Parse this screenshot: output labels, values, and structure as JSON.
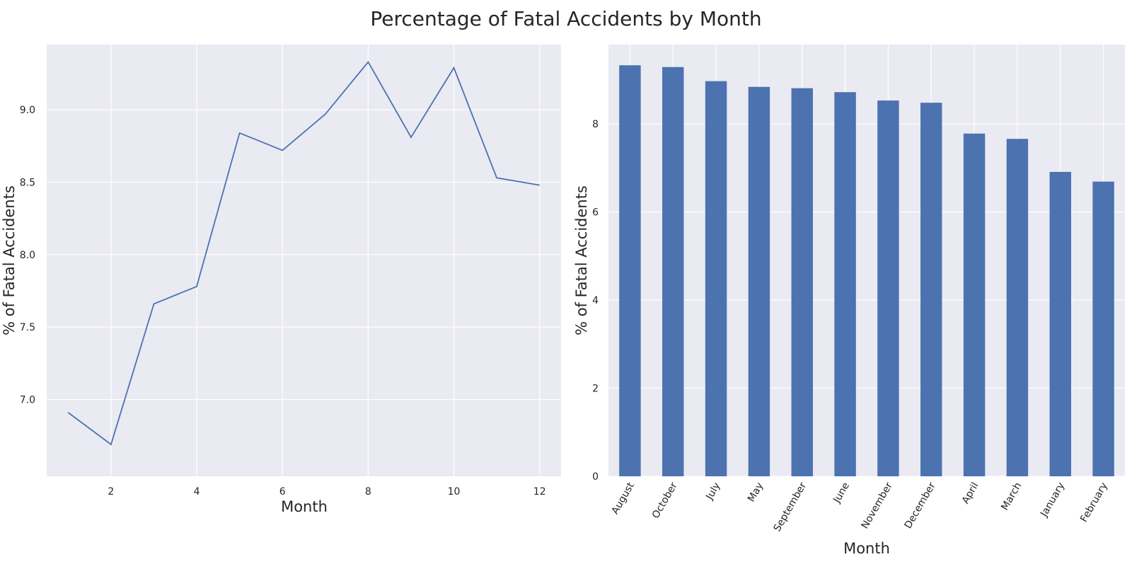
{
  "figure": {
    "title": "Percentage of Fatal Accidents by Month"
  },
  "colors": {
    "panel_background": "#eaeaf2",
    "grid": "#ffffff",
    "series": "#4c72b0",
    "text": "#262626"
  },
  "chart_data": [
    {
      "type": "line",
      "xlabel": "Month",
      "ylabel": "% of Fatal Accidents",
      "x": [
        1,
        2,
        3,
        4,
        5,
        6,
        7,
        8,
        9,
        10,
        11,
        12
      ],
      "values": [
        6.91,
        6.69,
        7.66,
        7.78,
        8.84,
        8.72,
        8.97,
        9.33,
        8.81,
        9.29,
        8.53,
        8.48
      ],
      "xlim": [
        0.5,
        12.5
      ],
      "ylim": [
        6.47,
        9.45
      ],
      "xticks": [
        2,
        4,
        6,
        8,
        10,
        12
      ],
      "yticks": [
        7.0,
        7.5,
        8.0,
        8.5,
        9.0
      ],
      "ytick_labels": [
        "7.0",
        "7.5",
        "8.0",
        "8.5",
        "9.0"
      ],
      "grid": true,
      "color": "#4c72b0"
    },
    {
      "type": "bar",
      "xlabel": "Month",
      "ylabel": "% of Fatal Accidents",
      "categories": [
        "August",
        "October",
        "July",
        "May",
        "September",
        "June",
        "November",
        "December",
        "April",
        "March",
        "January",
        "February"
      ],
      "values": [
        9.33,
        9.29,
        8.97,
        8.84,
        8.81,
        8.72,
        8.53,
        8.48,
        7.78,
        7.66,
        6.91,
        6.69
      ],
      "ylim": [
        0,
        9.8
      ],
      "yticks": [
        0,
        2,
        4,
        6,
        8
      ],
      "ytick_labels": [
        "0",
        "2",
        "4",
        "6",
        "8"
      ],
      "tick_rotation": -60,
      "grid": true,
      "color": "#4c72b0"
    }
  ]
}
